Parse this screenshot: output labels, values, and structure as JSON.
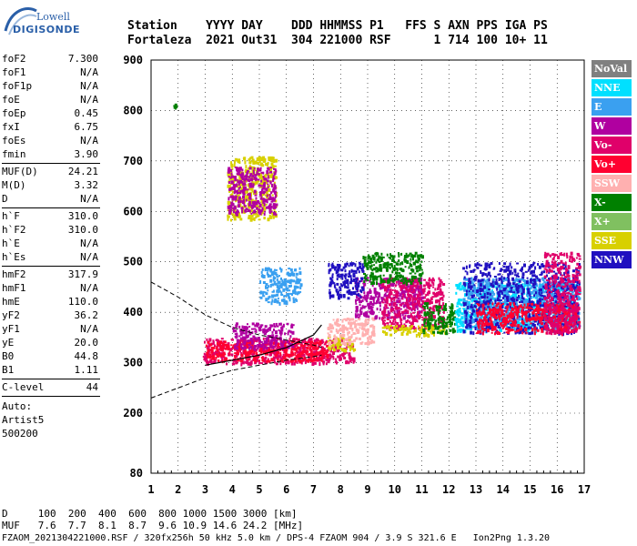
{
  "logo": {
    "line1": "Lowell",
    "line2": "DIGISONDE"
  },
  "header": {
    "line1": "Station    YYYY DAY    DDD HHMMSS P1   FFS S AXN PPS IGA PS",
    "line2": "Fortaleza  2021 Out31  304 221000 RSF      1 714 100 10+ 11"
  },
  "params": {
    "group1": [
      {
        "name": "foF2",
        "value": "7.300"
      },
      {
        "name": "foF1",
        "value": "N/A"
      },
      {
        "name": "foF1p",
        "value": "N/A"
      },
      {
        "name": "foE",
        "value": "N/A"
      },
      {
        "name": "foEp",
        "value": "0.45"
      },
      {
        "name": "fxI",
        "value": "6.75"
      },
      {
        "name": "foEs",
        "value": "N/A"
      },
      {
        "name": "fmin",
        "value": "3.90"
      }
    ],
    "group2": [
      {
        "name": "MUF(D)",
        "value": "24.21"
      },
      {
        "name": "M(D)",
        "value": "3.32"
      },
      {
        "name": "D",
        "value": "N/A"
      }
    ],
    "group3": [
      {
        "name": "h`F",
        "value": "310.0"
      },
      {
        "name": "h`F2",
        "value": "310.0"
      },
      {
        "name": "h`E",
        "value": "N/A"
      },
      {
        "name": "h`Es",
        "value": "N/A"
      }
    ],
    "group4": [
      {
        "name": "hmF2",
        "value": "317.9"
      },
      {
        "name": "hmF1",
        "value": "N/A"
      },
      {
        "name": "hmE",
        "value": "110.0"
      },
      {
        "name": "yF2",
        "value": "36.2"
      },
      {
        "name": "yF1",
        "value": "N/A"
      },
      {
        "name": "yE",
        "value": "20.0"
      },
      {
        "name": "B0",
        "value": "44.8"
      },
      {
        "name": "B1",
        "value": "1.11"
      }
    ],
    "clevel": {
      "name": "C-level",
      "value": "44"
    },
    "auto": [
      "Auto:",
      "Artist5",
      "500200"
    ]
  },
  "legend": [
    {
      "label": "NoVal",
      "color": "#808080"
    },
    {
      "label": "NNE",
      "color": "#00e0ff"
    },
    {
      "label": "E",
      "color": "#3aa0f0"
    },
    {
      "label": "W",
      "color": "#b000a0"
    },
    {
      "label": "Vo-",
      "color": "#e0006a"
    },
    {
      "label": "Vo+",
      "color": "#ff0030"
    },
    {
      "label": "SSW",
      "color": "#ffb0b0"
    },
    {
      "label": "X-",
      "color": "#008000"
    },
    {
      "label": "X+",
      "color": "#80c060"
    },
    {
      "label": "SSE",
      "color": "#d8d000"
    },
    {
      "label": "NNW",
      "color": "#2010c0"
    }
  ],
  "dtable": {
    "line1": "D     100  200  400  600  800 1000 1500 3000 [km]",
    "line2": "MUF   7.6  7.7  8.1  8.7  9.6 10.9 14.6 24.2 [MHz]"
  },
  "footer": "FZAOM_2021304221000.RSF / 320fx256h 50 kHz 5.0 km / DPS-4 FZAOM 904 / 3.9 S 321.6 E   Ion2Png 1.3.20",
  "chart_data": {
    "type": "scatter",
    "xlim": [
      1,
      17
    ],
    "ylim": [
      80,
      900
    ],
    "xticks": [
      "1",
      "2",
      "3",
      "4",
      "5",
      "6",
      "7",
      "8",
      "9",
      "10",
      "11",
      "12",
      "13",
      "14",
      "15",
      "16",
      "17"
    ],
    "yticks": [
      "900",
      "800",
      "700",
      "600",
      "500",
      "400",
      "300",
      "200",
      "80"
    ],
    "yticks_values": [
      900,
      800,
      700,
      600,
      500,
      400,
      300,
      200,
      80
    ],
    "grid": true,
    "legend_placement": "right",
    "clusters": [
      {
        "x": [
          1.8,
          1.9
        ],
        "y": [
          808,
          815
        ],
        "color": "#008000"
      },
      {
        "x": [
          2.9,
          8.5
        ],
        "y": [
          300,
          350
        ],
        "color": "#e0006a"
      },
      {
        "x": [
          3.0,
          7.5
        ],
        "y": [
          305,
          345
        ],
        "color": "#ff0030"
      },
      {
        "x": [
          4.0,
          6.2
        ],
        "y": [
          330,
          380
        ],
        "color": "#b000a0"
      },
      {
        "x": [
          3.8,
          5.6
        ],
        "y": [
          585,
          710
        ],
        "color": "#d8d000"
      },
      {
        "x": [
          3.8,
          5.6
        ],
        "y": [
          595,
          690
        ],
        "color": "#b000a0"
      },
      {
        "x": [
          7.5,
          8.5
        ],
        "y": [
          325,
          355
        ],
        "color": "#d8d000"
      },
      {
        "x": [
          7.5,
          9.2
        ],
        "y": [
          340,
          390
        ],
        "color": "#ffb0b0"
      },
      {
        "x": [
          8.5,
          11.0
        ],
        "y": [
          390,
          470
        ],
        "color": "#b000a0"
      },
      {
        "x": [
          9.5,
          11.8
        ],
        "y": [
          370,
          470
        ],
        "color": "#e0006a"
      },
      {
        "x": [
          9.5,
          12.0
        ],
        "y": [
          355,
          375
        ],
        "color": "#d8d000"
      },
      {
        "x": [
          11.0,
          12.2
        ],
        "y": [
          360,
          420
        ],
        "color": "#008000"
      },
      {
        "x": [
          12.2,
          16.8
        ],
        "y": [
          365,
          460
        ],
        "color": "#00e0ff"
      },
      {
        "x": [
          12.5,
          16.8
        ],
        "y": [
          370,
          470
        ],
        "color": "#3aa0f0"
      },
      {
        "x": [
          12.5,
          16.8
        ],
        "y": [
          360,
          500
        ],
        "color": "#2010c0"
      },
      {
        "x": [
          13.0,
          16.8
        ],
        "y": [
          360,
          420
        ],
        "color": "#ff0030"
      },
      {
        "x": [
          15.5,
          16.8
        ],
        "y": [
          360,
          520
        ],
        "color": "#e0006a"
      },
      {
        "x": [
          7.5,
          8.8
        ],
        "y": [
          430,
          500
        ],
        "color": "#2010c0"
      },
      {
        "x": [
          8.8,
          11.0
        ],
        "y": [
          460,
          520
        ],
        "color": "#008000"
      },
      {
        "x": [
          5.0,
          6.5
        ],
        "y": [
          420,
          490
        ],
        "color": "#3aa0f0"
      }
    ],
    "profile_curve": {
      "x": [
        1.0,
        2.0,
        3.0,
        4.0,
        5.0,
        6.0,
        7.0,
        7.3
      ],
      "y": [
        460,
        430,
        395,
        370,
        355,
        345,
        335,
        330
      ]
    },
    "profile_lower": {
      "x": [
        1.0,
        2.0,
        3.0,
        4.0,
        5.0,
        6.0,
        7.0,
        7.3
      ],
      "y": [
        230,
        250,
        270,
        285,
        295,
        305,
        312,
        315
      ]
    },
    "virtual_height_curve": {
      "x": [
        3.0,
        4.0,
        5.0,
        6.0,
        7.0,
        7.3
      ],
      "y": [
        295,
        305,
        315,
        330,
        355,
        375
      ]
    }
  }
}
